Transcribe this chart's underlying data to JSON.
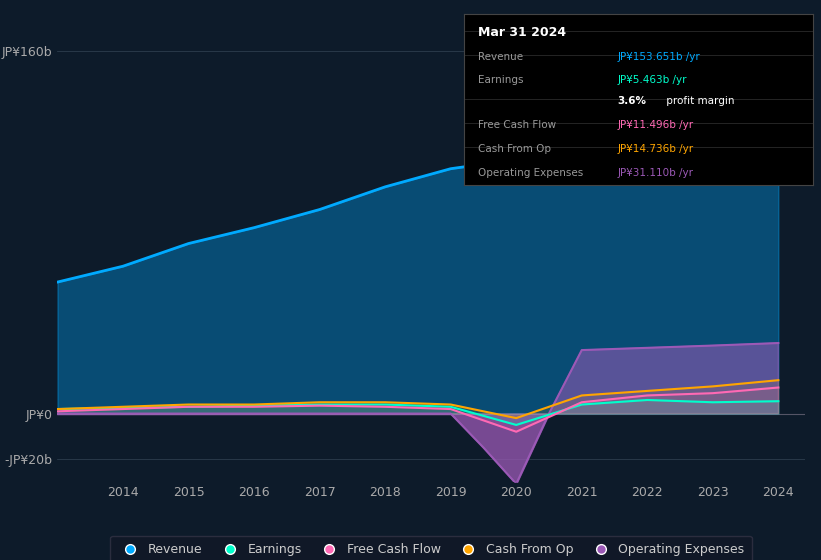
{
  "background_color": "#0d1b2a",
  "plot_bg_color": "#0d1b2a",
  "years": [
    2013,
    2014,
    2015,
    2016,
    2017,
    2018,
    2019,
    2020,
    2021,
    2022,
    2023,
    2024
  ],
  "revenue": [
    58,
    65,
    75,
    82,
    90,
    100,
    108,
    112,
    130,
    140,
    132,
    153.651
  ],
  "earnings": [
    2,
    2.5,
    3,
    3.5,
    4,
    4,
    3,
    -5,
    4,
    6,
    5,
    5.463
  ],
  "free_cash_flow": [
    1,
    2,
    3,
    3,
    3.5,
    3,
    2,
    -8,
    5,
    8,
    9,
    11.496
  ],
  "cash_from_op": [
    2,
    3,
    4,
    4,
    5,
    5,
    4,
    -2,
    8,
    10,
    12,
    14.736
  ],
  "opex_line_x": [
    2013,
    2014,
    2015,
    2016,
    2017,
    2018,
    2019,
    2019.5,
    2020,
    2020.5,
    2021,
    2022,
    2023,
    2024
  ],
  "opex_line_y": [
    0,
    0,
    0,
    0,
    0,
    0,
    0,
    -15,
    -31,
    0,
    28,
    29,
    30,
    31.11
  ],
  "xtick_positions": [
    2014,
    2015,
    2016,
    2017,
    2018,
    2019,
    2020,
    2021,
    2022,
    2023,
    2024
  ],
  "xtick_labels": [
    "2014",
    "2015",
    "2016",
    "2017",
    "2018",
    "2019",
    "2020",
    "2021",
    "2022",
    "2023",
    "2024"
  ],
  "ytick_positions": [
    -20,
    0,
    160
  ],
  "ytick_labels": [
    "-JP¥20b",
    "JP¥0",
    "JP¥160b"
  ],
  "color_revenue": "#00aaff",
  "color_earnings": "#00ffcc",
  "color_free_cash_flow": "#ff69b4",
  "color_cash_from_op": "#ffa500",
  "color_operating_expenses": "#9b59b6",
  "legend_labels": [
    "Revenue",
    "Earnings",
    "Free Cash Flow",
    "Cash From Op",
    "Operating Expenses"
  ],
  "tooltip_date": "Mar 31 2024",
  "tooltip_rows": [
    {
      "label": "Revenue",
      "value": "JP¥153.651b /yr",
      "color": "#00aaff",
      "divider_above": true
    },
    {
      "label": "Earnings",
      "value": "JP¥5.463b /yr",
      "color": "#00ffcc",
      "divider_above": true
    },
    {
      "label": "",
      "value": "3.6% profit margin",
      "color": "white",
      "divider_above": false
    },
    {
      "label": "Free Cash Flow",
      "value": "JP¥11.496b /yr",
      "color": "#ff69b4",
      "divider_above": true
    },
    {
      "label": "Cash From Op",
      "value": "JP¥14.736b /yr",
      "color": "#ffa500",
      "divider_above": true
    },
    {
      "label": "Operating Expenses",
      "value": "JP¥31.110b /yr",
      "color": "#9b59b6",
      "divider_above": true
    }
  ]
}
